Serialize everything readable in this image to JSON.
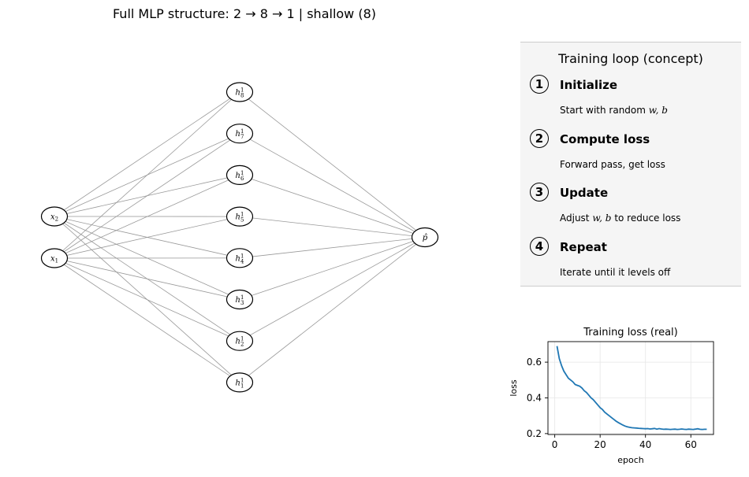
{
  "title": "Full MLP structure: 2 → 8 → 1 | shallow (8)",
  "network": {
    "inputs": [
      {
        "id": "x2",
        "base": "x",
        "sub": "2"
      },
      {
        "id": "x1",
        "base": "x",
        "sub": "1"
      }
    ],
    "hidden": [
      {
        "id": "h8",
        "base": "h",
        "sup": "1",
        "sub": "8"
      },
      {
        "id": "h7",
        "base": "h",
        "sup": "1",
        "sub": "7"
      },
      {
        "id": "h6",
        "base": "h",
        "sup": "1",
        "sub": "6"
      },
      {
        "id": "h5",
        "base": "h",
        "sup": "1",
        "sub": "5"
      },
      {
        "id": "h4",
        "base": "h",
        "sup": "1",
        "sub": "4"
      },
      {
        "id": "h3",
        "base": "h",
        "sup": "1",
        "sub": "3"
      },
      {
        "id": "h2",
        "base": "h",
        "sup": "1",
        "sub": "2"
      },
      {
        "id": "h1",
        "base": "h",
        "sup": "1",
        "sub": "1"
      }
    ],
    "output": {
      "id": "p",
      "label": "p̂"
    }
  },
  "panel": {
    "title": "Training loop (concept)",
    "steps": [
      {
        "num": "1",
        "title": "Initialize",
        "desc_pre": "Start with random ",
        "desc_math": "w, b",
        "desc_post": ""
      },
      {
        "num": "2",
        "title": "Compute loss",
        "desc_pre": "Forward pass, get loss",
        "desc_math": "",
        "desc_post": ""
      },
      {
        "num": "3",
        "title": "Update",
        "desc_pre": "Adjust ",
        "desc_math": "w, b",
        "desc_post": " to reduce loss"
      },
      {
        "num": "4",
        "title": "Repeat",
        "desc_pre": "Iterate until it levels off",
        "desc_math": "",
        "desc_post": ""
      }
    ]
  },
  "chart_data": {
    "type": "line",
    "title": "Training loss (real)",
    "xlabel": "epoch",
    "ylabel": "loss",
    "xlim": [
      -3,
      70
    ],
    "ylim": [
      0.195,
      0.715
    ],
    "xticks": [
      0,
      20,
      40,
      60
    ],
    "yticks": [
      0.2,
      0.4,
      0.6
    ],
    "grid": true,
    "color": "#1f77b4",
    "x": [
      1,
      2,
      3,
      4,
      5,
      6,
      7,
      8,
      9,
      10,
      11,
      12,
      13,
      14,
      15,
      16,
      17,
      18,
      19,
      20,
      21,
      22,
      23,
      24,
      25,
      26,
      27,
      28,
      29,
      30,
      31,
      32,
      33,
      34,
      35,
      36,
      37,
      38,
      39,
      40,
      41,
      42,
      43,
      44,
      45,
      46,
      47,
      48,
      49,
      50,
      51,
      52,
      53,
      54,
      55,
      56,
      57,
      58,
      59,
      60,
      61,
      62,
      63,
      64,
      65,
      66,
      67
    ],
    "y": [
      0.69,
      0.62,
      0.58,
      0.55,
      0.53,
      0.51,
      0.5,
      0.49,
      0.475,
      0.47,
      0.465,
      0.455,
      0.44,
      0.43,
      0.415,
      0.4,
      0.39,
      0.375,
      0.36,
      0.345,
      0.335,
      0.32,
      0.31,
      0.3,
      0.29,
      0.28,
      0.27,
      0.262,
      0.255,
      0.248,
      0.242,
      0.238,
      0.235,
      0.233,
      0.232,
      0.231,
      0.23,
      0.229,
      0.228,
      0.227,
      0.228,
      0.226,
      0.227,
      0.229,
      0.225,
      0.228,
      0.226,
      0.224,
      0.225,
      0.224,
      0.223,
      0.224,
      0.225,
      0.223,
      0.224,
      0.226,
      0.224,
      0.223,
      0.225,
      0.224,
      0.223,
      0.225,
      0.227,
      0.224,
      0.223,
      0.224,
      0.224
    ]
  }
}
